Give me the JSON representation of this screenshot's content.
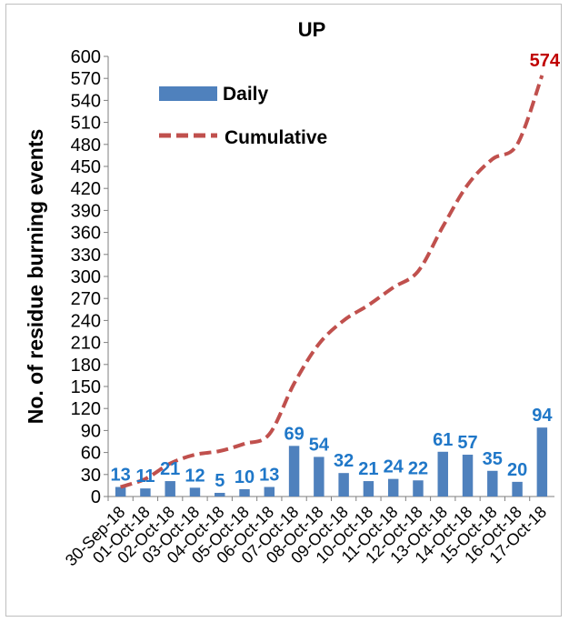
{
  "chart_data": {
    "type": "bar+line",
    "title": "UP",
    "ylabel": "No. of residue burning events",
    "xlabel": "",
    "ylim": [
      0,
      600
    ],
    "ytick_step": 30,
    "yticks": [
      "0",
      "30",
      "60",
      "90",
      "120",
      "150",
      "180",
      "210",
      "240",
      "270",
      "300",
      "330",
      "360",
      "390",
      "420",
      "450",
      "480",
      "510",
      "540",
      "570",
      "600"
    ],
    "categories": [
      "30-Sep-18",
      "01-Oct-18",
      "02-Oct-18",
      "03-Oct-18",
      "04-Oct-18",
      "05-Oct-18",
      "06-Oct-18",
      "07-Oct-18",
      "08-Oct-18",
      "09-Oct-18",
      "10-Oct-18",
      "11-Oct-18",
      "12-Oct-18",
      "13-Oct-18",
      "14-Oct-18",
      "15-Oct-18",
      "16-Oct-18",
      "17-Oct-18"
    ],
    "series": [
      {
        "name": "Daily",
        "kind": "bar",
        "color": "#4f81bd",
        "label_color": "#1f77c8",
        "values": [
          13,
          11,
          21,
          12,
          5,
          10,
          13,
          69,
          54,
          32,
          21,
          24,
          22,
          61,
          57,
          35,
          20,
          94
        ],
        "labels": [
          "13",
          "11",
          "21",
          "12",
          "5",
          "10",
          "13",
          "69",
          "54",
          "32",
          "21",
          "24",
          "22",
          "61",
          "57",
          "35",
          "20",
          "94"
        ]
      },
      {
        "name": "Cumulative",
        "kind": "line",
        "style": "dashed",
        "color": "#c0504d",
        "label_color": "#c00000",
        "values": [
          13,
          24,
          45,
          57,
          62,
          72,
          85,
          154,
          208,
          240,
          261,
          285,
          307,
          368,
          425,
          460,
          480,
          574
        ],
        "end_label": "574"
      }
    ],
    "grid": false,
    "legend_position": "top-left"
  }
}
